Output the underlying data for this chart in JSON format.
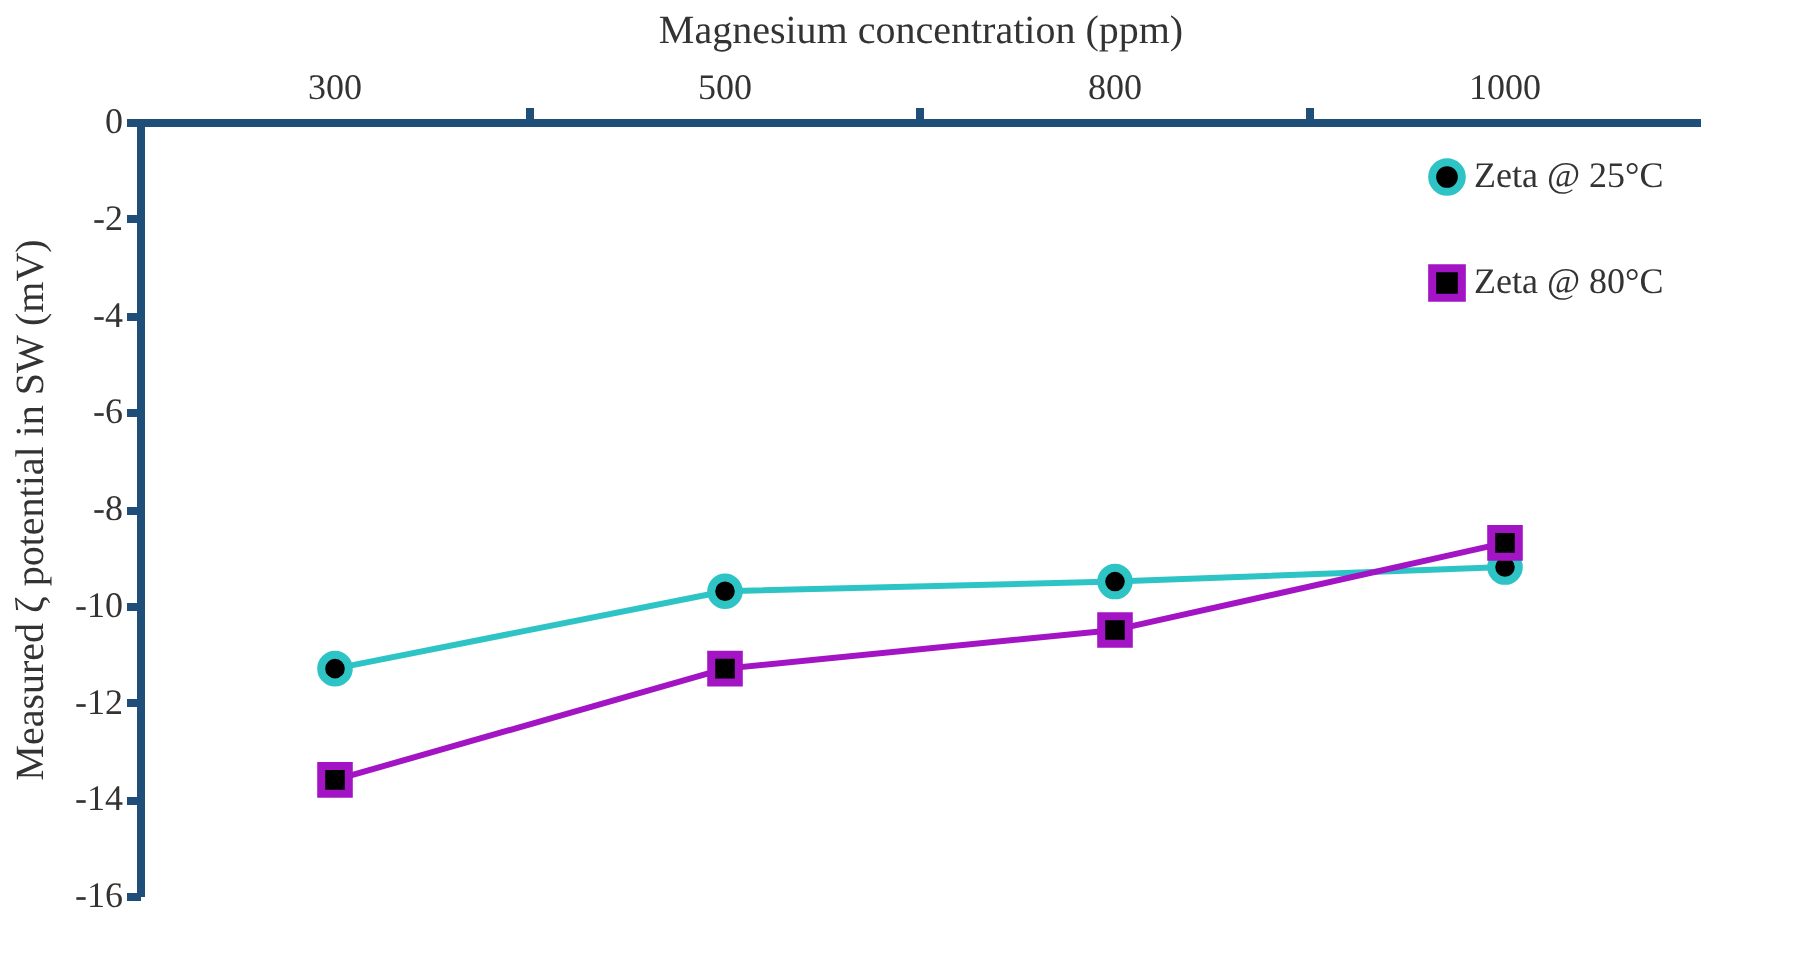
{
  "chart_data": {
    "type": "line",
    "xlabel": "Magnesium concentration (ppm)",
    "ylabel": "Measured ζ potential in SW (mV)",
    "categories": [
      "300",
      "500",
      "800",
      "1000"
    ],
    "series": [
      {
        "name": "Zeta @ 25°C",
        "color": "#2ec4c6",
        "marker": "circle",
        "values": [
          -11.3,
          -9.7,
          -9.5,
          -9.2
        ]
      },
      {
        "name": "Zeta @ 80°C",
        "color": "#a214c4",
        "marker": "square",
        "values": [
          -13.6,
          -11.3,
          -10.5,
          -8.7
        ]
      }
    ],
    "ylim": [
      -16,
      0
    ],
    "yticks": [
      0,
      -2,
      -4,
      -6,
      -8,
      -10,
      -12,
      -14,
      -16
    ],
    "grid": false,
    "legend": "top right",
    "line_style": "solid"
  }
}
